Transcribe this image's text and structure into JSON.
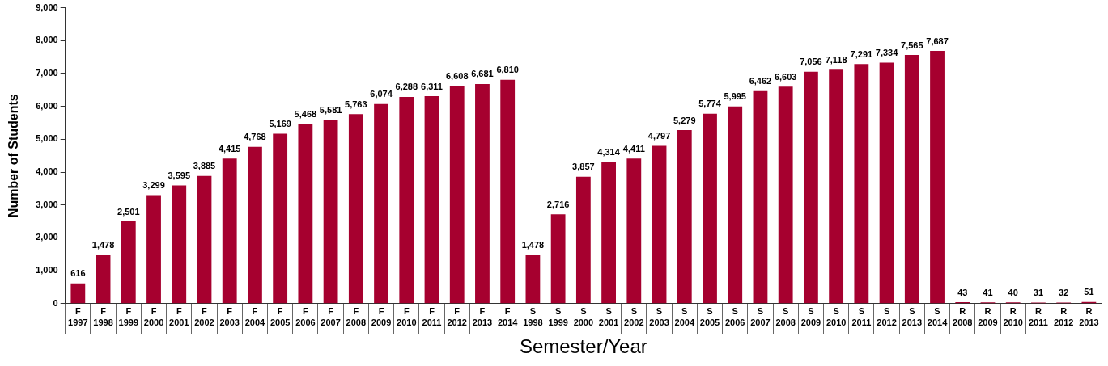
{
  "chart_data": {
    "type": "bar",
    "xlabel": "Semester/Year",
    "ylabel": "Number of Students",
    "categories": [
      "F 1997",
      "F 1998",
      "F 1999",
      "F 2000",
      "F 2001",
      "F 2002",
      "F 2003",
      "F 2004",
      "F 2005",
      "F 2006",
      "F 2007",
      "F 2008",
      "F 2009",
      "F 2010",
      "F 2011",
      "F 2012",
      "F 2013",
      "F 2014",
      "S 1998",
      "S 1999",
      "S 2000",
      "S 2001",
      "S 2002",
      "S 2003",
      "S 2004",
      "S 2005",
      "S 2006",
      "S 2007",
      "S 2008",
      "S 2009",
      "S 2010",
      "S 2011",
      "S 2012",
      "S 2013",
      "S 2014",
      "R 2008",
      "R 2009",
      "R 2010",
      "R 2011",
      "R 2012",
      "R 2013"
    ],
    "values": [
      616,
      1478,
      2501,
      3299,
      3595,
      3885,
      4415,
      4768,
      5169,
      5468,
      5581,
      5763,
      6074,
      6288,
      6311,
      6608,
      6681,
      6810,
      1478,
      2716,
      3857,
      4314,
      4411,
      4797,
      5279,
      5774,
      5995,
      6462,
      6603,
      7056,
      7118,
      7291,
      7334,
      7565,
      7687,
      43,
      41,
      40,
      31,
      32,
      51
    ],
    "color": "#a6002f",
    "ylim": [
      0,
      9000
    ],
    "yticks": [
      {
        "value": 0,
        "label": "0"
      },
      {
        "value": 1000,
        "label": "1,000"
      },
      {
        "value": 2000,
        "label": "2,000"
      },
      {
        "value": 3000,
        "label": "3,000"
      },
      {
        "value": 4000,
        "label": "4,000"
      },
      {
        "value": 5000,
        "label": "5,000"
      },
      {
        "value": 6000,
        "label": "6,000"
      },
      {
        "value": 7000,
        "label": "7,000"
      },
      {
        "value": 8000,
        "label": "8,000"
      },
      {
        "value": 9000,
        "label": "9,000"
      }
    ],
    "value_labels": [
      "616",
      "1,478",
      "2,501",
      "3,299",
      "3,595",
      "3,885",
      "4,415",
      "4,768",
      "5,169",
      "5,468",
      "5,581",
      "5,763",
      "6,074",
      "6,288",
      "6,311",
      "6,608",
      "6,681",
      "6,810",
      "1,478",
      "2,716",
      "3,857",
      "4,314",
      "4,411",
      "4,797",
      "5,279",
      "5,774",
      "5,995",
      "6,462",
      "6,603",
      "7,056",
      "7,118",
      "7,291",
      "7,334",
      "7,565",
      "7,687",
      "43",
      "41",
      "40",
      "31",
      "32",
      "51"
    ],
    "grid": false,
    "legend": false
  }
}
